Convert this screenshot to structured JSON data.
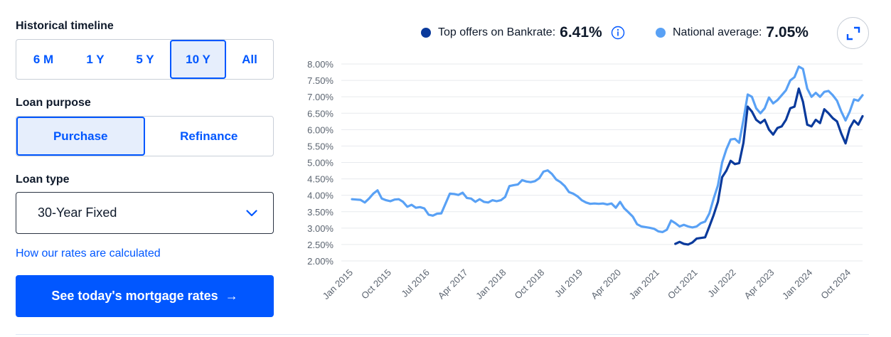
{
  "controls": {
    "timeline": {
      "label": "Historical timeline",
      "options": [
        "6 M",
        "1 Y",
        "5 Y",
        "10 Y",
        "All"
      ],
      "selected": "10 Y"
    },
    "purpose": {
      "label": "Loan purpose",
      "options": [
        "Purchase",
        "Refinance"
      ],
      "selected": "Purchase"
    },
    "loan_type": {
      "label": "Loan type",
      "value": "30-Year Fixed"
    },
    "how_link": "How our rates are calculated",
    "cta": {
      "label": "See today's mortgage rates",
      "arrow": "→"
    }
  },
  "legend": {
    "top_offers": {
      "label": "Top offers on Bankrate:",
      "value": "6.41%",
      "color": "#0a3a9c"
    },
    "national": {
      "label": "National average:",
      "value": "7.05%",
      "color": "#59a1f5"
    }
  },
  "icons": {
    "info": "info-icon",
    "expand": "expand-icon",
    "chevron": "chevron-down-icon",
    "arrow": "arrow-right-icon"
  },
  "chart_data": {
    "type": "line",
    "title": "",
    "xlabel": "",
    "ylabel": "",
    "ylim": [
      2.0,
      8.0
    ],
    "y_ticks": [
      2.0,
      2.5,
      3.0,
      3.5,
      4.0,
      4.5,
      5.0,
      5.5,
      6.0,
      6.5,
      7.0,
      7.5,
      8.0
    ],
    "y_tick_labels": [
      "2.00%",
      "2.50%",
      "3.00%",
      "3.50%",
      "4.00%",
      "4.50%",
      "5.00%",
      "5.50%",
      "6.00%",
      "6.50%",
      "7.00%",
      "7.50%",
      "8.00%"
    ],
    "x_range": [
      "2015-01",
      "2025-01"
    ],
    "x_ticks": [
      "2015-01",
      "2015-10",
      "2016-07",
      "2017-04",
      "2018-01",
      "2018-10",
      "2019-07",
      "2020-04",
      "2021-01",
      "2021-10",
      "2022-07",
      "2023-04",
      "2024-01",
      "2024-10"
    ],
    "x_tick_labels": [
      "Jan 2015",
      "Oct 2015",
      "Jul 2016",
      "Apr 2017",
      "Jan 2018",
      "Oct 2018",
      "Jul 2019",
      "Apr 2020",
      "Jan 2021",
      "Oct 2021",
      "Jul 2022",
      "Apr 2023",
      "Jan 2024",
      "Oct 2024"
    ],
    "grid": true,
    "series": [
      {
        "name": "National average",
        "color": "#59a1f5",
        "points": [
          [
            "2015-01",
            3.88
          ],
          [
            "2015-02",
            3.87
          ],
          [
            "2015-03",
            3.86
          ],
          [
            "2015-04",
            3.78
          ],
          [
            "2015-05",
            3.9
          ],
          [
            "2015-06",
            4.05
          ],
          [
            "2015-07",
            4.15
          ],
          [
            "2015-08",
            3.9
          ],
          [
            "2015-09",
            3.85
          ],
          [
            "2015-10",
            3.82
          ],
          [
            "2015-11",
            3.87
          ],
          [
            "2015-12",
            3.88
          ],
          [
            "2016-01",
            3.8
          ],
          [
            "2016-02",
            3.65
          ],
          [
            "2016-03",
            3.71
          ],
          [
            "2016-04",
            3.62
          ],
          [
            "2016-05",
            3.64
          ],
          [
            "2016-06",
            3.6
          ],
          [
            "2016-07",
            3.41
          ],
          [
            "2016-08",
            3.38
          ],
          [
            "2016-09",
            3.44
          ],
          [
            "2016-10",
            3.45
          ],
          [
            "2016-11",
            3.75
          ],
          [
            "2016-12",
            4.05
          ],
          [
            "2017-01",
            4.04
          ],
          [
            "2017-02",
            4.01
          ],
          [
            "2017-03",
            4.08
          ],
          [
            "2017-04",
            3.92
          ],
          [
            "2017-05",
            3.9
          ],
          [
            "2017-06",
            3.8
          ],
          [
            "2017-07",
            3.88
          ],
          [
            "2017-08",
            3.8
          ],
          [
            "2017-09",
            3.78
          ],
          [
            "2017-10",
            3.85
          ],
          [
            "2017-11",
            3.82
          ],
          [
            "2017-12",
            3.85
          ],
          [
            "2018-01",
            3.95
          ],
          [
            "2018-02",
            4.28
          ],
          [
            "2018-03",
            4.31
          ],
          [
            "2018-04",
            4.33
          ],
          [
            "2018-05",
            4.46
          ],
          [
            "2018-06",
            4.42
          ],
          [
            "2018-07",
            4.4
          ],
          [
            "2018-08",
            4.43
          ],
          [
            "2018-09",
            4.52
          ],
          [
            "2018-10",
            4.72
          ],
          [
            "2018-11",
            4.76
          ],
          [
            "2018-12",
            4.65
          ],
          [
            "2019-01",
            4.48
          ],
          [
            "2019-02",
            4.4
          ],
          [
            "2019-03",
            4.28
          ],
          [
            "2019-04",
            4.1
          ],
          [
            "2019-05",
            4.05
          ],
          [
            "2019-06",
            3.97
          ],
          [
            "2019-07",
            3.85
          ],
          [
            "2019-08",
            3.78
          ],
          [
            "2019-09",
            3.74
          ],
          [
            "2019-10",
            3.75
          ],
          [
            "2019-11",
            3.74
          ],
          [
            "2019-12",
            3.75
          ],
          [
            "2020-01",
            3.72
          ],
          [
            "2020-02",
            3.75
          ],
          [
            "2020-03",
            3.62
          ],
          [
            "2020-04",
            3.8
          ],
          [
            "2020-05",
            3.6
          ],
          [
            "2020-06",
            3.48
          ],
          [
            "2020-07",
            3.35
          ],
          [
            "2020-08",
            3.12
          ],
          [
            "2020-09",
            3.05
          ],
          [
            "2020-10",
            3.03
          ],
          [
            "2020-11",
            3.01
          ],
          [
            "2020-12",
            2.98
          ],
          [
            "2021-01",
            2.9
          ],
          [
            "2021-02",
            2.88
          ],
          [
            "2021-03",
            2.95
          ],
          [
            "2021-04",
            3.23
          ],
          [
            "2021-05",
            3.15
          ],
          [
            "2021-06",
            3.05
          ],
          [
            "2021-07",
            3.1
          ],
          [
            "2021-08",
            3.05
          ],
          [
            "2021-09",
            3.02
          ],
          [
            "2021-10",
            3.05
          ],
          [
            "2021-11",
            3.15
          ],
          [
            "2021-12",
            3.2
          ],
          [
            "2022-01",
            3.45
          ],
          [
            "2022-02",
            3.9
          ],
          [
            "2022-03",
            4.3
          ],
          [
            "2022-04",
            5.0
          ],
          [
            "2022-05",
            5.4
          ],
          [
            "2022-06",
            5.7
          ],
          [
            "2022-07",
            5.72
          ],
          [
            "2022-08",
            5.6
          ],
          [
            "2022-09",
            6.3
          ],
          [
            "2022-10",
            7.07
          ],
          [
            "2022-11",
            7.0
          ],
          [
            "2022-12",
            6.65
          ],
          [
            "2023-01",
            6.5
          ],
          [
            "2023-02",
            6.65
          ],
          [
            "2023-03",
            6.98
          ],
          [
            "2023-04",
            6.8
          ],
          [
            "2023-05",
            6.9
          ],
          [
            "2023-06",
            7.05
          ],
          [
            "2023-07",
            7.2
          ],
          [
            "2023-08",
            7.5
          ],
          [
            "2023-09",
            7.6
          ],
          [
            "2023-10",
            7.92
          ],
          [
            "2023-11",
            7.85
          ],
          [
            "2023-12",
            7.25
          ],
          [
            "2024-01",
            7.0
          ],
          [
            "2024-02",
            7.12
          ],
          [
            "2024-03",
            7.0
          ],
          [
            "2024-04",
            7.15
          ],
          [
            "2024-05",
            7.18
          ],
          [
            "2024-06",
            7.05
          ],
          [
            "2024-07",
            6.88
          ],
          [
            "2024-08",
            6.55
          ],
          [
            "2024-09",
            6.28
          ],
          [
            "2024-10",
            6.55
          ],
          [
            "2024-11",
            6.92
          ],
          [
            "2024-12",
            6.88
          ],
          [
            "2025-01",
            7.05
          ]
        ]
      },
      {
        "name": "Top offers on Bankrate",
        "color": "#0a3a9c",
        "points": [
          [
            "2021-05",
            2.52
          ],
          [
            "2021-06",
            2.58
          ],
          [
            "2021-07",
            2.52
          ],
          [
            "2021-08",
            2.5
          ],
          [
            "2021-09",
            2.56
          ],
          [
            "2021-10",
            2.68
          ],
          [
            "2021-11",
            2.7
          ],
          [
            "2021-12",
            2.72
          ],
          [
            "2022-01",
            3.05
          ],
          [
            "2022-02",
            3.4
          ],
          [
            "2022-03",
            3.8
          ],
          [
            "2022-04",
            4.55
          ],
          [
            "2022-05",
            4.75
          ],
          [
            "2022-06",
            5.05
          ],
          [
            "2022-07",
            4.95
          ],
          [
            "2022-08",
            4.98
          ],
          [
            "2022-09",
            5.6
          ],
          [
            "2022-10",
            6.7
          ],
          [
            "2022-11",
            6.55
          ],
          [
            "2022-12",
            6.3
          ],
          [
            "2023-01",
            6.2
          ],
          [
            "2023-02",
            6.3
          ],
          [
            "2023-03",
            6.0
          ],
          [
            "2023-04",
            5.85
          ],
          [
            "2023-05",
            6.05
          ],
          [
            "2023-06",
            6.1
          ],
          [
            "2023-07",
            6.3
          ],
          [
            "2023-08",
            6.65
          ],
          [
            "2023-09",
            6.7
          ],
          [
            "2023-10",
            7.25
          ],
          [
            "2023-11",
            6.85
          ],
          [
            "2023-12",
            6.15
          ],
          [
            "2024-01",
            6.1
          ],
          [
            "2024-02",
            6.3
          ],
          [
            "2024-03",
            6.2
          ],
          [
            "2024-04",
            6.62
          ],
          [
            "2024-05",
            6.5
          ],
          [
            "2024-06",
            6.35
          ],
          [
            "2024-07",
            6.25
          ],
          [
            "2024-08",
            5.88
          ],
          [
            "2024-09",
            5.58
          ],
          [
            "2024-10",
            6.05
          ],
          [
            "2024-11",
            6.28
          ],
          [
            "2024-12",
            6.15
          ],
          [
            "2025-01",
            6.41
          ]
        ]
      }
    ]
  }
}
